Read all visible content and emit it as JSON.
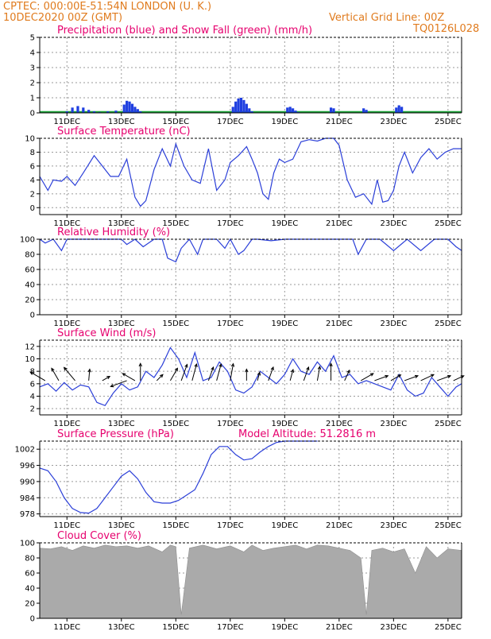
{
  "header": {
    "line1": "CPTEC:    000:00E-51:54N    LONDON (U. K.)",
    "line2_left": "10DEC2020 00Z (GMT)",
    "line2_right": "Vertical Grid Line: 00Z",
    "line3_right": "TQ0126L028"
  },
  "colors": {
    "header": "#e07b1e",
    "titles": "#e6006e",
    "line": "#2b3fd8",
    "precip": "#1f3fe0",
    "snow": "#1fa53a",
    "cloud": "#aaaaaa",
    "grid": "#9a9a9a"
  },
  "x_dates": [
    "11DEC",
    "13DEC",
    "15DEC",
    "17DEC",
    "19DEC",
    "21DEC",
    "23DEC",
    "25DEC"
  ],
  "chart_data": [
    {
      "id": "precip",
      "type": "bar",
      "title": "Precipitation (blue) and Snow Fall (green) (mm/h)",
      "ylim": [
        0,
        5
      ],
      "yticks": [
        0,
        1,
        2,
        3,
        4,
        5
      ],
      "x": [
        1.0,
        1.2,
        1.4,
        1.6,
        1.8,
        2.0,
        2.2,
        2.5,
        2.8,
        3.1,
        3.2,
        3.3,
        3.4,
        3.5,
        3.6,
        3.7,
        7.1,
        7.2,
        7.3,
        7.4,
        7.5,
        7.6,
        7.7,
        7.8,
        9.1,
        9.2,
        9.3,
        9.4,
        9.5,
        10.7,
        10.8,
        11.9,
        12.0,
        13.1,
        13.2,
        13.3
      ],
      "values": [
        0.1,
        0.35,
        0.45,
        0.35,
        0.2,
        0.1,
        0.05,
        0.1,
        0.15,
        0.55,
        0.8,
        0.75,
        0.6,
        0.4,
        0.25,
        0.1,
        0.4,
        0.75,
        0.95,
        1.0,
        0.85,
        0.6,
        0.3,
        0.1,
        0.35,
        0.4,
        0.3,
        0.15,
        0.05,
        0.35,
        0.3,
        0.3,
        0.2,
        0.35,
        0.5,
        0.4
      ],
      "snow": 0.0,
      "xlim": [
        0,
        15.5
      ]
    },
    {
      "id": "temp",
      "type": "line",
      "title": "Surface Temperature (nC)",
      "ylim": [
        -1,
        10
      ],
      "yticks": [
        0,
        2,
        4,
        6,
        8,
        10
      ],
      "xlim": [
        0,
        15.5
      ],
      "x": [
        0,
        0.3,
        0.5,
        0.8,
        1.0,
        1.3,
        1.6,
        2.0,
        2.3,
        2.6,
        2.9,
        3.2,
        3.5,
        3.7,
        3.9,
        4.2,
        4.5,
        4.8,
        5.0,
        5.3,
        5.6,
        5.9,
        6.2,
        6.5,
        6.8,
        7.0,
        7.3,
        7.6,
        7.8,
        8.0,
        8.2,
        8.4,
        8.6,
        8.8,
        9.0,
        9.3,
        9.6,
        9.9,
        10.2,
        10.5,
        10.8,
        11.0,
        11.3,
        11.6,
        11.9,
        12.2,
        12.4,
        12.6,
        12.8,
        13.0,
        13.2,
        13.4,
        13.7,
        14.0,
        14.3,
        14.6,
        14.9,
        15.2,
        15.5
      ],
      "values": [
        4.5,
        2.5,
        4.0,
        3.8,
        4.5,
        3.2,
        5.0,
        7.5,
        6.0,
        4.5,
        4.5,
        7.0,
        1.5,
        0.2,
        1.0,
        5.5,
        8.5,
        6.0,
        9.2,
        6.0,
        4.0,
        3.5,
        8.5,
        2.5,
        4.0,
        6.5,
        7.5,
        8.8,
        7.0,
        5.0,
        2.0,
        1.2,
        5.0,
        7.0,
        6.5,
        7.0,
        9.5,
        9.8,
        9.6,
        10.0,
        10.0,
        9.0,
        4.0,
        1.5,
        2.0,
        0.5,
        4.0,
        0.8,
        1.0,
        2.5,
        6.0,
        8.0,
        5.0,
        7.2,
        8.5,
        7.0,
        8.0,
        8.5,
        8.5
      ]
    },
    {
      "id": "rh",
      "type": "line",
      "title": "Relative Humidity (%)",
      "ylim": [
        0,
        100
      ],
      "yticks": [
        0,
        20,
        40,
        60,
        80,
        100
      ],
      "xlim": [
        0,
        15.5
      ],
      "x": [
        0,
        0.2,
        0.5,
        0.8,
        1.0,
        1.5,
        2.0,
        2.5,
        3.0,
        3.2,
        3.5,
        3.8,
        4.2,
        4.5,
        4.7,
        5.0,
        5.2,
        5.5,
        5.8,
        6.0,
        6.5,
        6.8,
        7.0,
        7.3,
        7.5,
        7.8,
        8.0,
        8.5,
        9.0,
        9.5,
        10.0,
        10.5,
        11.0,
        11.5,
        11.7,
        12.0,
        12.5,
        13.0,
        13.5,
        14.0,
        14.5,
        15.0,
        15.3,
        15.5
      ],
      "values": [
        100,
        95,
        100,
        85,
        100,
        100,
        100,
        100,
        100,
        93,
        100,
        90,
        100,
        100,
        75,
        70,
        88,
        100,
        80,
        100,
        100,
        88,
        100,
        80,
        85,
        100,
        100,
        98,
        100,
        100,
        100,
        100,
        100,
        100,
        80,
        100,
        100,
        85,
        100,
        85,
        100,
        100,
        90,
        85
      ]
    },
    {
      "id": "wind",
      "type": "line",
      "title": "Surface Wind (m/s)",
      "ylim": [
        1,
        13
      ],
      "yticks": [
        2,
        4,
        6,
        8,
        10,
        12
      ],
      "xlim": [
        0,
        15.5
      ],
      "x": [
        0,
        0.3,
        0.6,
        0.9,
        1.2,
        1.5,
        1.8,
        2.1,
        2.4,
        2.7,
        3.0,
        3.3,
        3.6,
        3.9,
        4.2,
        4.5,
        4.8,
        5.1,
        5.4,
        5.7,
        6.0,
        6.3,
        6.6,
        6.9,
        7.2,
        7.5,
        7.8,
        8.1,
        8.4,
        8.7,
        9.0,
        9.3,
        9.6,
        9.9,
        10.2,
        10.5,
        10.8,
        11.1,
        11.4,
        11.7,
        12.0,
        12.3,
        12.6,
        12.9,
        13.2,
        13.5,
        13.8,
        14.1,
        14.4,
        14.7,
        15.0,
        15.3,
        15.5
      ],
      "values": [
        5.5,
        6.0,
        4.8,
        6.2,
        5.0,
        5.8,
        5.5,
        3.0,
        2.5,
        4.5,
        6.0,
        5.0,
        5.5,
        8.0,
        7.0,
        9.0,
        11.8,
        10.0,
        7.0,
        11.0,
        6.5,
        7.0,
        9.5,
        8.0,
        5.0,
        4.5,
        5.5,
        8.0,
        7.0,
        6.0,
        7.5,
        10.0,
        8.0,
        7.5,
        9.5,
        8.0,
        10.5,
        7.0,
        7.5,
        6.0,
        6.5,
        6.0,
        5.5,
        5.0,
        7.5,
        5.0,
        4.0,
        4.5,
        7.0,
        5.5,
        4.0,
        5.5,
        6.0
      ],
      "arrows": [
        {
          "x": 0.2,
          "v": 6,
          "dir": 300
        },
        {
          "x": 0.7,
          "v": 5,
          "dir": 330
        },
        {
          "x": 1.3,
          "v": 6,
          "dir": 320
        },
        {
          "x": 1.8,
          "v": 4,
          "dir": 5
        },
        {
          "x": 2.3,
          "v": 3,
          "dir": 60
        },
        {
          "x": 3.2,
          "v": 6,
          "dir": 250
        },
        {
          "x": 3.5,
          "v": 5,
          "dir": 300
        },
        {
          "x": 3.7,
          "v": 6,
          "dir": 0
        },
        {
          "x": 4.3,
          "v": 3,
          "dir": 45
        },
        {
          "x": 4.8,
          "v": 5,
          "dir": 30
        },
        {
          "x": 5.2,
          "v": 6,
          "dir": 20
        },
        {
          "x": 5.6,
          "v": 6,
          "dir": 15
        },
        {
          "x": 6.2,
          "v": 5,
          "dir": 20
        },
        {
          "x": 6.5,
          "v": 6,
          "dir": 15
        },
        {
          "x": 7.0,
          "v": 6,
          "dir": 10
        },
        {
          "x": 7.6,
          "v": 4,
          "dir": 0
        },
        {
          "x": 8.0,
          "v": 3,
          "dir": 15
        },
        {
          "x": 8.4,
          "v": 5,
          "dir": 20
        },
        {
          "x": 9.2,
          "v": 4,
          "dir": 15
        },
        {
          "x": 9.7,
          "v": 5,
          "dir": 20
        },
        {
          "x": 10.2,
          "v": 5,
          "dir": 10
        },
        {
          "x": 10.7,
          "v": 6,
          "dir": 0
        },
        {
          "x": 11.2,
          "v": 4,
          "dir": 25
        },
        {
          "x": 11.8,
          "v": 5,
          "dir": 60
        },
        {
          "x": 12.3,
          "v": 5,
          "dir": 70
        },
        {
          "x": 12.9,
          "v": 4,
          "dir": 60
        },
        {
          "x": 13.4,
          "v": 5,
          "dir": 70
        },
        {
          "x": 14.0,
          "v": 5,
          "dir": 65
        },
        {
          "x": 14.6,
          "v": 5,
          "dir": 70
        },
        {
          "x": 15.2,
          "v": 4,
          "dir": 65
        }
      ]
    },
    {
      "id": "pressure",
      "type": "line",
      "title": "Surface Pressure (hPa)",
      "annotation": "Model Altitude: 51.2816 m",
      "ylim": [
        977,
        1005
      ],
      "yticks": [
        978,
        984,
        990,
        996,
        1002
      ],
      "xlim": [
        0,
        15.5
      ],
      "x": [
        0,
        0.3,
        0.6,
        0.9,
        1.2,
        1.5,
        1.8,
        2.1,
        2.4,
        2.7,
        3.0,
        3.3,
        3.6,
        3.9,
        4.2,
        4.5,
        4.8,
        5.1,
        5.4,
        5.7,
        6.0,
        6.3,
        6.6,
        6.9,
        7.2,
        7.5,
        7.8,
        8.1,
        8.4,
        8.7,
        9.0,
        9.3,
        9.6,
        9.9,
        10.2
      ],
      "values": [
        995,
        994,
        990,
        984,
        980,
        978.5,
        978.3,
        980,
        984,
        988,
        992,
        994,
        991,
        986,
        982.5,
        982,
        982,
        983,
        985,
        987,
        993,
        1000,
        1003,
        1003,
        1000,
        998,
        998.5,
        1001,
        1003,
        1004.5,
        1005,
        1005,
        1005,
        1005,
        1005
      ]
    },
    {
      "id": "cloud",
      "type": "area",
      "title": "Cloud Cover (%)",
      "ylim": [
        0,
        100
      ],
      "yticks": [
        0,
        20,
        40,
        60,
        80,
        100
      ],
      "xlim": [
        0,
        15.5
      ],
      "x": [
        0,
        0.4,
        0.8,
        1.2,
        1.6,
        2.0,
        2.4,
        2.8,
        3.2,
        3.6,
        4.0,
        4.5,
        4.8,
        5.0,
        5.2,
        5.5,
        6.0,
        6.5,
        7.0,
        7.5,
        7.8,
        8.2,
        8.6,
        9.0,
        9.4,
        9.8,
        10.2,
        10.6,
        11.0,
        11.4,
        11.8,
        12.0,
        12.2,
        12.6,
        13.0,
        13.4,
        13.8,
        14.2,
        14.6,
        15.0,
        15.5
      ],
      "values": [
        93,
        92,
        95,
        90,
        96,
        93,
        97,
        95,
        96,
        93,
        96,
        88,
        97,
        95,
        5,
        93,
        97,
        92,
        96,
        88,
        97,
        90,
        93,
        95,
        97,
        92,
        97,
        96,
        93,
        90,
        80,
        5,
        90,
        93,
        88,
        92,
        60,
        95,
        80,
        92,
        90
      ]
    }
  ]
}
